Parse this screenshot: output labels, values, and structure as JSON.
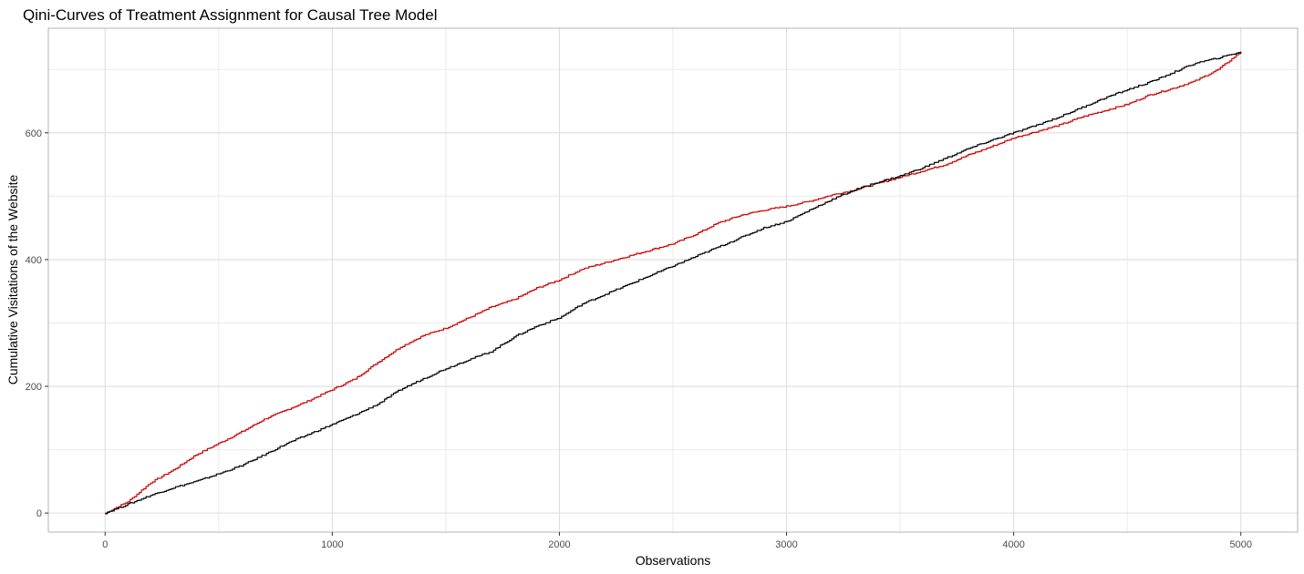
{
  "chart_data": {
    "type": "line",
    "title": "Qini-Curves of Treatment Assignment for Causal Tree Model",
    "xlabel": "Observations",
    "ylabel": "Cumulative Visitations of the Website",
    "xlim": [
      -250,
      5250
    ],
    "ylim": [
      -30,
      765
    ],
    "x_ticks": [
      0,
      1000,
      2000,
      3000,
      4000,
      5000
    ],
    "x_tick_labels": [
      "0",
      "1000",
      "2000",
      "3000",
      "4000",
      "5000"
    ],
    "y_ticks": [
      0,
      200,
      400,
      600
    ],
    "y_tick_labels": [
      "0",
      "200",
      "400",
      "600"
    ],
    "x_minor_ticks": [
      500,
      1500,
      2500,
      3500,
      4500
    ],
    "y_minor_ticks": [
      100,
      300,
      500,
      700
    ],
    "grid": true,
    "legend": "none",
    "series": [
      {
        "name": "red-curve",
        "color": "#cc0000",
        "points": [
          [
            0,
            0
          ],
          [
            100,
            18
          ],
          [
            200,
            48
          ],
          [
            300,
            68
          ],
          [
            400,
            92
          ],
          [
            500,
            110
          ],
          [
            600,
            128
          ],
          [
            700,
            148
          ],
          [
            800,
            163
          ],
          [
            900,
            178
          ],
          [
            1000,
            195
          ],
          [
            1100,
            212
          ],
          [
            1200,
            238
          ],
          [
            1300,
            262
          ],
          [
            1400,
            280
          ],
          [
            1500,
            292
          ],
          [
            1600,
            308
          ],
          [
            1700,
            325
          ],
          [
            1800,
            337
          ],
          [
            1900,
            355
          ],
          [
            2000,
            368
          ],
          [
            2100,
            385
          ],
          [
            2200,
            395
          ],
          [
            2300,
            405
          ],
          [
            2400,
            415
          ],
          [
            2500,
            425
          ],
          [
            2600,
            440
          ],
          [
            2700,
            458
          ],
          [
            2800,
            470
          ],
          [
            2900,
            478
          ],
          [
            3000,
            484
          ],
          [
            3100,
            492
          ],
          [
            3200,
            502
          ],
          [
            3300,
            510
          ],
          [
            3400,
            520
          ],
          [
            3500,
            530
          ],
          [
            3600,
            540
          ],
          [
            3700,
            550
          ],
          [
            3800,
            565
          ],
          [
            3900,
            578
          ],
          [
            4000,
            592
          ],
          [
            4100,
            602
          ],
          [
            4200,
            612
          ],
          [
            4300,
            625
          ],
          [
            4400,
            635
          ],
          [
            4500,
            645
          ],
          [
            4600,
            660
          ],
          [
            4700,
            670
          ],
          [
            4800,
            682
          ],
          [
            4900,
            700
          ],
          [
            5000,
            728
          ]
        ]
      },
      {
        "name": "black-curve",
        "color": "#000000",
        "points": [
          [
            0,
            0
          ],
          [
            100,
            14
          ],
          [
            200,
            28
          ],
          [
            300,
            40
          ],
          [
            400,
            50
          ],
          [
            500,
            62
          ],
          [
            600,
            75
          ],
          [
            700,
            92
          ],
          [
            800,
            110
          ],
          [
            900,
            125
          ],
          [
            1000,
            140
          ],
          [
            1100,
            155
          ],
          [
            1200,
            172
          ],
          [
            1300,
            195
          ],
          [
            1400,
            212
          ],
          [
            1500,
            228
          ],
          [
            1600,
            242
          ],
          [
            1700,
            255
          ],
          [
            1800,
            278
          ],
          [
            1900,
            295
          ],
          [
            2000,
            308
          ],
          [
            2100,
            330
          ],
          [
            2200,
            345
          ],
          [
            2300,
            360
          ],
          [
            2400,
            375
          ],
          [
            2500,
            390
          ],
          [
            2600,
            405
          ],
          [
            2700,
            420
          ],
          [
            2800,
            435
          ],
          [
            2900,
            450
          ],
          [
            3000,
            460
          ],
          [
            3100,
            478
          ],
          [
            3200,
            495
          ],
          [
            3300,
            510
          ],
          [
            3400,
            522
          ],
          [
            3500,
            532
          ],
          [
            3600,
            545
          ],
          [
            3700,
            560
          ],
          [
            3800,
            575
          ],
          [
            3900,
            588
          ],
          [
            4000,
            600
          ],
          [
            4100,
            612
          ],
          [
            4200,
            625
          ],
          [
            4300,
            640
          ],
          [
            4400,
            655
          ],
          [
            4500,
            668
          ],
          [
            4600,
            680
          ],
          [
            4700,
            695
          ],
          [
            4800,
            710
          ],
          [
            4900,
            718
          ],
          [
            5000,
            728
          ]
        ]
      }
    ]
  }
}
